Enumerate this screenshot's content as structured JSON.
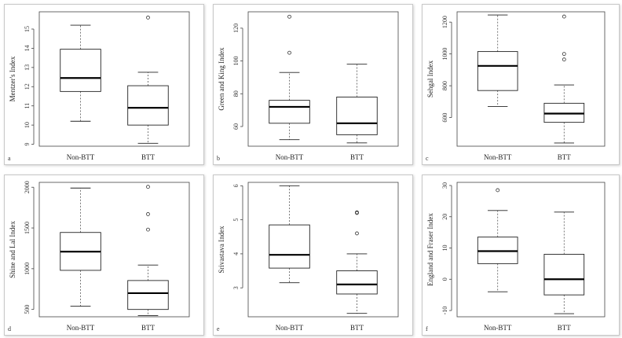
{
  "chart_data": [
    {
      "type": "boxplot",
      "panel_letter": "a",
      "ylabel": "Mentzer's Index",
      "categories": [
        "Non-BTT",
        "BTT"
      ],
      "ylim": [
        8.9,
        15.9
      ],
      "yticks": [
        9,
        10,
        11,
        12,
        13,
        14,
        15
      ],
      "boxes": [
        {
          "min": 10.2,
          "q1": 11.75,
          "median": 12.45,
          "q3": 13.95,
          "max": 15.2,
          "outliers": []
        },
        {
          "min": 9.05,
          "q1": 10.0,
          "median": 10.9,
          "q3": 12.05,
          "max": 12.75,
          "outliers": [
            15.6
          ]
        }
      ]
    },
    {
      "type": "boxplot",
      "panel_letter": "b",
      "ylabel": "Green and King Index",
      "categories": [
        "Non-BTT",
        "BTT"
      ],
      "ylim": [
        48,
        130
      ],
      "yticks": [
        60,
        80,
        100,
        120
      ],
      "boxes": [
        {
          "min": 52,
          "q1": 62,
          "median": 72,
          "q3": 76,
          "max": 93,
          "outliers": [
            105,
            127
          ]
        },
        {
          "min": 50,
          "q1": 55,
          "median": 62,
          "q3": 78,
          "max": 98,
          "outliers": []
        }
      ]
    },
    {
      "type": "boxplot",
      "panel_letter": "c",
      "ylabel": "Sehgal Index",
      "categories": [
        "Non-BTT",
        "BTT"
      ],
      "ylim": [
        420,
        1265
      ],
      "yticks": [
        600,
        800,
        1000,
        1200
      ],
      "boxes": [
        {
          "min": 670,
          "q1": 770,
          "median": 925,
          "q3": 1015,
          "max": 1245,
          "outliers": []
        },
        {
          "min": 440,
          "q1": 570,
          "median": 625,
          "q3": 690,
          "max": 805,
          "outliers": [
            965,
            1000,
            1235
          ]
        }
      ]
    },
    {
      "type": "boxplot",
      "panel_letter": "d",
      "ylabel": "Shine and Lal Index",
      "categories": [
        "Non-BTT",
        "BTT"
      ],
      "ylim": [
        410,
        2060
      ],
      "yticks": [
        500,
        1000,
        1500,
        2000
      ],
      "boxes": [
        {
          "min": 540,
          "q1": 980,
          "median": 1210,
          "q3": 1445,
          "max": 1990,
          "outliers": []
        },
        {
          "min": 425,
          "q1": 500,
          "median": 700,
          "q3": 855,
          "max": 1045,
          "outliers": [
            1480,
            1670,
            2005
          ]
        }
      ]
    },
    {
      "type": "boxplot",
      "panel_letter": "e",
      "ylabel": "Srivastava Index",
      "categories": [
        "Non-BTT",
        "BTT"
      ],
      "ylim": [
        2.15,
        6.1
      ],
      "yticks": [
        3,
        4,
        5,
        6
      ],
      "boxes": [
        {
          "min": 3.15,
          "q1": 3.58,
          "median": 3.97,
          "q3": 4.85,
          "max": 6.0,
          "outliers": []
        },
        {
          "min": 2.25,
          "q1": 2.82,
          "median": 3.1,
          "q3": 3.5,
          "max": 4.0,
          "outliers": [
            4.6,
            5.2,
            5.22
          ]
        }
      ]
    },
    {
      "type": "boxplot",
      "panel_letter": "f",
      "ylabel": "England and Fraser Index",
      "categories": [
        "Non-BTT",
        "BTT"
      ],
      "ylim": [
        -12,
        31
      ],
      "yticks": [
        -10,
        0,
        10,
        20,
        30
      ],
      "boxes": [
        {
          "min": -4,
          "q1": 5,
          "median": 9,
          "q3": 13.5,
          "max": 22,
          "outliers": [
            28.5
          ]
        },
        {
          "min": -11,
          "q1": -5,
          "median": 0,
          "q3": 8,
          "max": 21.5,
          "outliers": []
        }
      ]
    }
  ]
}
